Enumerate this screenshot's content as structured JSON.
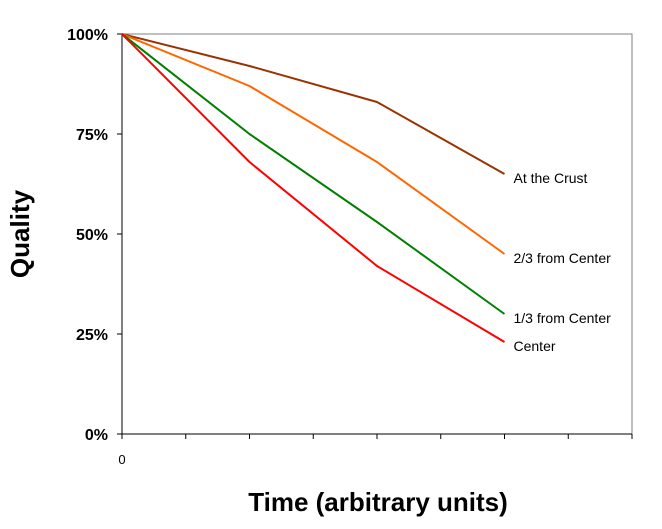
{
  "chart_data": {
    "type": "line",
    "title": "",
    "xlabel": "Time (arbitrary units)",
    "ylabel": "Quality",
    "x": [
      0,
      1,
      2,
      3
    ],
    "x_tick_labels": [
      "0"
    ],
    "xlim": [
      0,
      4
    ],
    "ylim": [
      0,
      100
    ],
    "y_ticks": [
      0,
      25,
      50,
      75,
      100
    ],
    "y_tick_labels": [
      "0%",
      "25%",
      "50%",
      "75%",
      "100%"
    ],
    "grid": false,
    "series": [
      {
        "name": "At the Crust",
        "color": "#993300",
        "values": [
          100,
          92,
          83,
          65
        ]
      },
      {
        "name": "2/3 from Center",
        "color": "#FF6600",
        "values": [
          100,
          87,
          68,
          45
        ]
      },
      {
        "name": "1/3 from Center",
        "color": "#008000",
        "values": [
          100,
          75,
          53,
          30
        ]
      },
      {
        "name": "Center",
        "color": "#FF0000",
        "values": [
          100,
          68,
          42,
          23
        ]
      }
    ]
  }
}
